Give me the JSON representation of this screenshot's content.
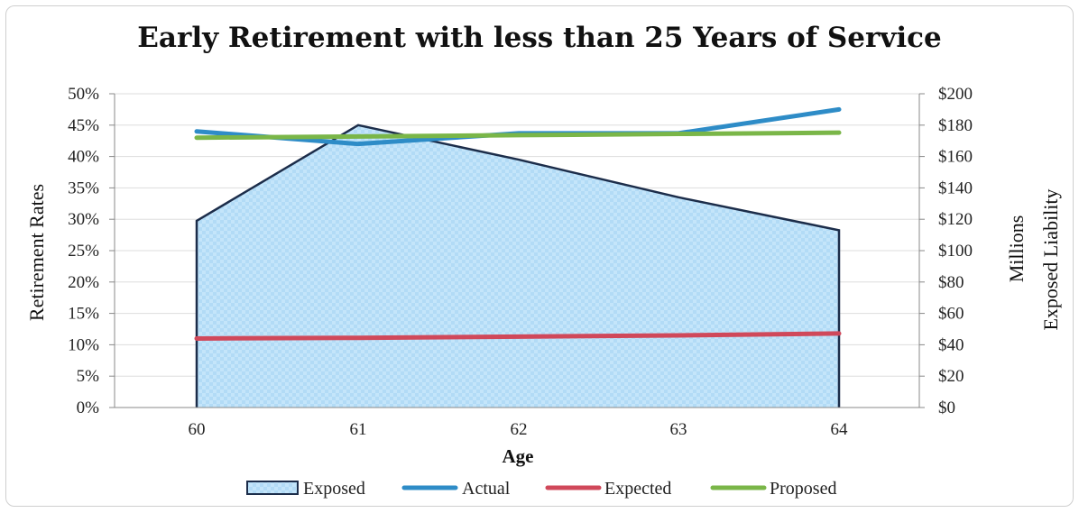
{
  "chart_data": {
    "type": "area",
    "title": "Early Retirement with less than 25 Years of Service",
    "xlabel": "Age",
    "ylabel": "Retirement Rates",
    "y2label_line1": "Millions",
    "y2label_line2": "Exposed Liability",
    "categories": [
      "60",
      "61",
      "62",
      "63",
      "64"
    ],
    "ylim": [
      0,
      0.5
    ],
    "y_ticks": [
      "0%",
      "5%",
      "10%",
      "15%",
      "20%",
      "25%",
      "30%",
      "35%",
      "40%",
      "45%",
      "50%"
    ],
    "y2lim": [
      0,
      200
    ],
    "y2_ticks": [
      "$0",
      "$20",
      "$40",
      "$60",
      "$80",
      "$100",
      "$120",
      "$140",
      "$160",
      "$180",
      "$200"
    ],
    "grid": true,
    "legend_position": "bottom",
    "series": [
      {
        "name": "Exposed",
        "kind": "area",
        "axis": "right",
        "values": [
          119,
          180,
          158,
          134,
          113
        ],
        "color": "#1c2d4a",
        "fill": "#bfe3fa"
      },
      {
        "name": "Actual",
        "kind": "line",
        "axis": "left",
        "values": [
          0.44,
          0.42,
          0.437,
          0.437,
          0.475
        ],
        "color": "#2e8cc7"
      },
      {
        "name": "Expected",
        "kind": "line",
        "axis": "left",
        "values": [
          0.11,
          0.111,
          0.113,
          0.115,
          0.118
        ],
        "color": "#d0485a"
      },
      {
        "name": "Proposed",
        "kind": "line",
        "axis": "left",
        "values": [
          0.43,
          0.432,
          0.434,
          0.436,
          0.438
        ],
        "color": "#7ab648"
      }
    ]
  }
}
